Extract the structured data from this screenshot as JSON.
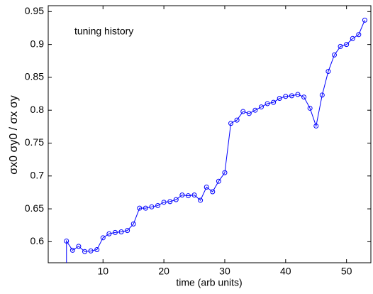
{
  "chart_data": {
    "type": "line",
    "annotation": "tuning history",
    "xlabel": "time (arb units)",
    "ylabel": "σx0 σy0 / σx σy",
    "x": [
      4,
      4,
      5,
      6,
      7,
      8,
      9,
      10,
      11,
      12,
      13,
      14,
      15,
      16,
      17,
      18,
      19,
      20,
      21,
      22,
      23,
      24,
      25,
      26,
      27,
      28,
      29,
      30,
      31,
      32,
      33,
      34,
      35,
      36,
      37,
      38,
      39,
      40,
      41,
      42,
      43,
      44,
      45,
      46,
      47,
      48,
      49,
      50,
      51,
      52,
      53
    ],
    "series": [
      {
        "name": "tuning",
        "color": "#0000ff",
        "values": [
          0.55,
          0.601,
          0.587,
          0.593,
          0.585,
          0.586,
          0.588,
          0.606,
          0.612,
          0.614,
          0.615,
          0.617,
          0.627,
          0.651,
          0.651,
          0.653,
          0.655,
          0.66,
          0.661,
          0.664,
          0.671,
          0.67,
          0.671,
          0.663,
          0.683,
          0.676,
          0.692,
          0.705,
          0.78,
          0.785,
          0.798,
          0.795,
          0.8,
          0.805,
          0.81,
          0.812,
          0.818,
          0.821,
          0.822,
          0.824,
          0.82,
          0.803,
          0.776,
          0.823,
          0.859,
          0.884,
          0.897,
          0.9,
          0.909,
          0.915,
          0.937
        ]
      }
    ],
    "xlim": [
      1,
      54
    ],
    "xticks": [
      10,
      20,
      30,
      40,
      50
    ],
    "ylim": [
      0.568,
      0.959
    ],
    "yticks": [
      0.6,
      0.65,
      0.7,
      0.75,
      0.8,
      0.85,
      0.9,
      0.95
    ],
    "grid": false
  }
}
